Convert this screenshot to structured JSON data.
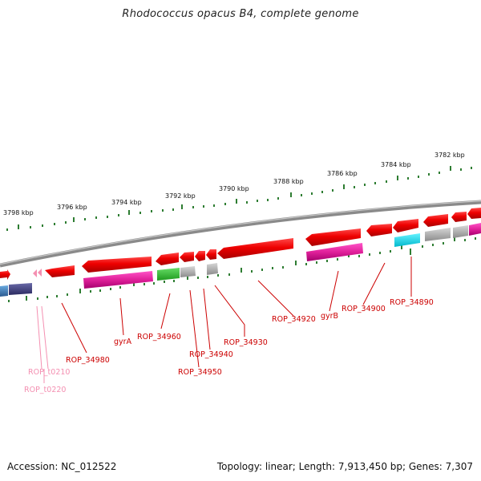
{
  "title": "Rhodococcus opacus B4, complete genome",
  "footer": {
    "accession": "Accession: NC_012522",
    "summary": "Topology: linear; Length: 7,913,450 bp; Genes: 7,307"
  },
  "colors": {
    "backbone": "#8a8a8a",
    "tick": "#2e7d32",
    "label_red": "#cc0000",
    "label_pink": "#f48fb1",
    "cds_red": "#ee0000",
    "magenta": "#e0209a",
    "green": "#33bb33",
    "grey": "#b0b0b0",
    "cyan": "#00ddee",
    "navy": "#3a3a7a",
    "blue": "#3a7ab8",
    "pink_arrow": "#f080b0"
  },
  "kbp_labels": [
    "3798 kbp",
    "3796 kbp",
    "3794 kbp",
    "3792 kbp",
    "3790 kbp",
    "3788 kbp",
    "3786 kbp",
    "3784 kbp",
    "3782 kbp"
  ],
  "gene_labels": [
    "ROP_t0210",
    "ROP_t0220",
    "ROP_34980",
    "gyrA",
    "ROP_34960",
    "ROP_34950",
    "ROP_34940",
    "ROP_34930",
    "ROP_34920",
    "gyrB",
    "ROP_34900",
    "ROP_34890"
  ]
}
